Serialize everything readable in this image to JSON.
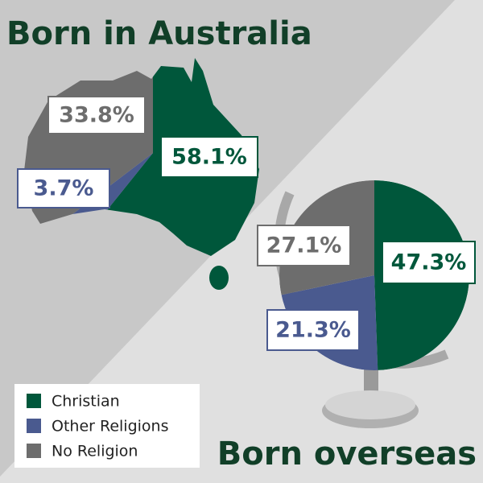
{
  "chart_data": [
    {
      "type": "pie",
      "title": "Born in Australia",
      "categories": [
        "Christian",
        "Other Religions",
        "No Religion"
      ],
      "values": [
        58.1,
        3.7,
        33.8
      ],
      "value_labels": [
        "58.1%",
        "3.7%",
        "33.8%"
      ],
      "colors": [
        "#00573b",
        "#4a5a8f",
        "#6d6d6d"
      ]
    },
    {
      "type": "pie",
      "title": "Born overseas",
      "values": [
        47.3,
        21.3,
        27.1
      ],
      "value_labels": [
        "47.3%",
        "21.3%",
        "27.1%"
      ],
      "colors": [
        "#00573b",
        "#4a5a8f",
        "#6d6d6d"
      ]
    }
  ]
}
